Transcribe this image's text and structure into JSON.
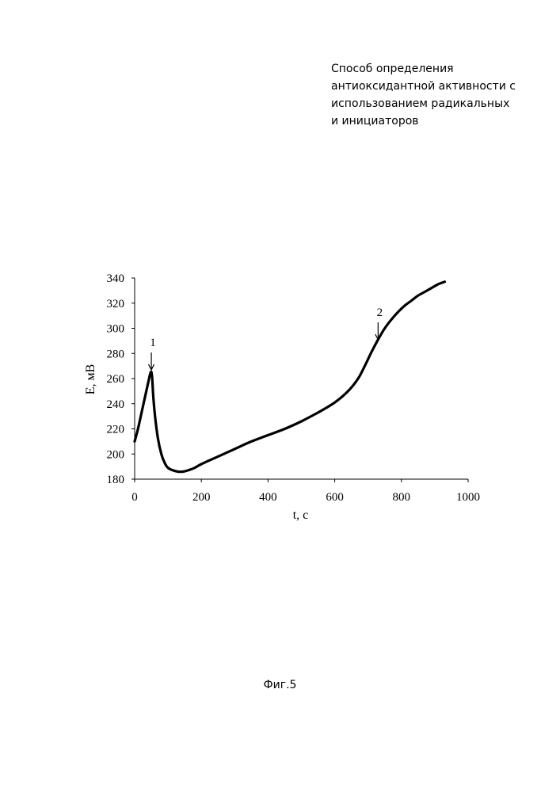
{
  "header": {
    "title_lines": [
      "Способ определения",
      "антиоксидантной активности с",
      "использованием радикальных",
      "и инициаторов"
    ]
  },
  "figure": {
    "caption": "Фиг.5"
  },
  "chart_data": {
    "type": "line",
    "title": "",
    "xlabel": "t,  с",
    "ylabel": "E,  мВ",
    "xlim": [
      0,
      1000
    ],
    "ylim": [
      180,
      340
    ],
    "x_ticks": [
      0,
      200,
      400,
      600,
      800,
      1000
    ],
    "y_ticks": [
      180,
      200,
      220,
      240,
      260,
      280,
      300,
      320,
      340
    ],
    "grid": false,
    "legend": "none",
    "series": [
      {
        "x": [
          0,
          10,
          20,
          30,
          40,
          48,
          52,
          56,
          62,
          70,
          80,
          90,
          100,
          115,
          130,
          145,
          160,
          180,
          200,
          250,
          300,
          350,
          400,
          450,
          500,
          550,
          600,
          640,
          670,
          690,
          710,
          730,
          750,
          770,
          790,
          810,
          830,
          850,
          870,
          890,
          910,
          930
        ],
        "y": [
          210,
          220,
          232,
          244,
          256,
          265,
          262,
          245,
          228,
          212,
          200,
          193,
          189,
          187,
          186,
          186,
          187,
          189,
          192,
          198,
          204,
          210,
          215,
          220,
          226,
          233,
          241,
          250,
          260,
          270,
          281,
          291,
          300,
          307,
          313,
          318,
          322,
          326,
          329,
          332,
          335,
          337
        ]
      }
    ],
    "annotations": [
      {
        "label": "1",
        "x": 50,
        "y": 265
      },
      {
        "label": "2",
        "x": 730,
        "y": 289
      }
    ],
    "line_color": "#000000"
  }
}
